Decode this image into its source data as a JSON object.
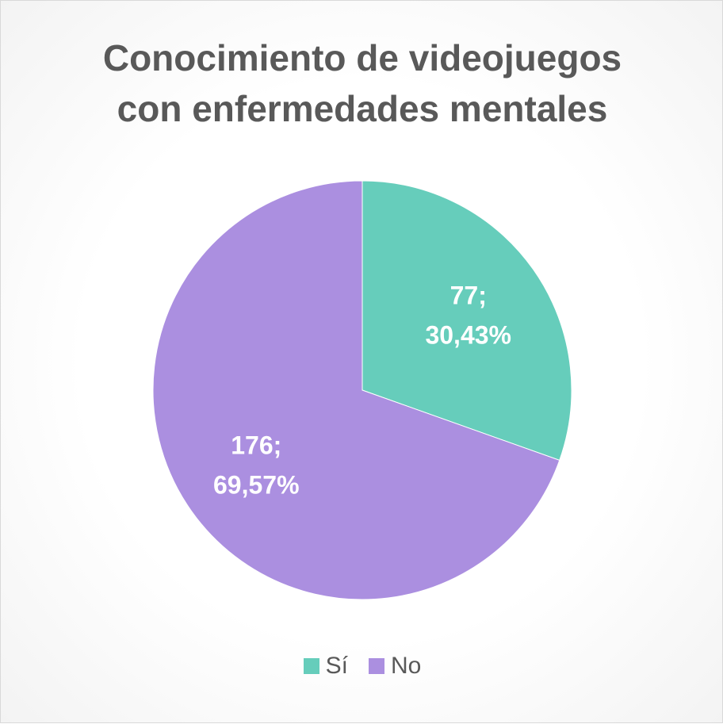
{
  "chart_data": {
    "type": "pie",
    "title_lines": [
      "Conocimiento de videojuegos",
      "con enfermedades mentales"
    ],
    "categories": [
      "Sí",
      "No"
    ],
    "values": [
      77,
      176
    ],
    "percent_labels": [
      "30,43%",
      "69,57%"
    ],
    "colors": [
      "#66CDBB",
      "#AB8FE0"
    ],
    "legend_position": "bottom"
  }
}
